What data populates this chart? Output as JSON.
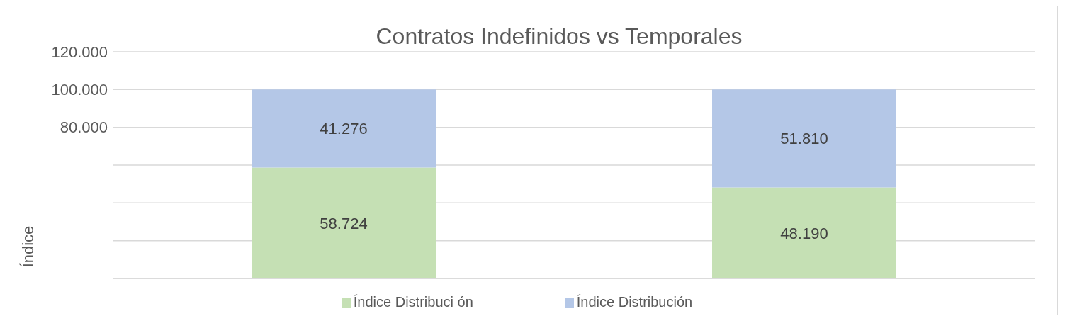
{
  "chart_data": {
    "type": "bar",
    "title": "Contratos Indefinidos vs Temporales",
    "ylabel": "Índice",
    "categories": [
      null,
      null
    ],
    "series": [
      {
        "name": "Índice Distribuci ón",
        "color": "#c5e0b4",
        "values": [
          58.724,
          48.19
        ],
        "value_labels": [
          "58.724",
          "48.190"
        ]
      },
      {
        "name": "Índice Distribución",
        "color": "#b4c7e7",
        "values": [
          41.276,
          51.81
        ],
        "value_labels": [
          "41.276",
          "51.810"
        ]
      }
    ],
    "stacked": true,
    "ylim": [
      0,
      120
    ],
    "yticks": [
      {
        "value": 0,
        "label": null
      },
      {
        "value": 20,
        "label": null
      },
      {
        "value": 40,
        "label": null
      },
      {
        "value": 60,
        "label": null
      },
      {
        "value": 80,
        "label": "80.000"
      },
      {
        "value": 100,
        "label": "100.000"
      },
      {
        "value": 120,
        "label": "120.000"
      }
    ],
    "grid": "y",
    "legend": "bottom"
  }
}
